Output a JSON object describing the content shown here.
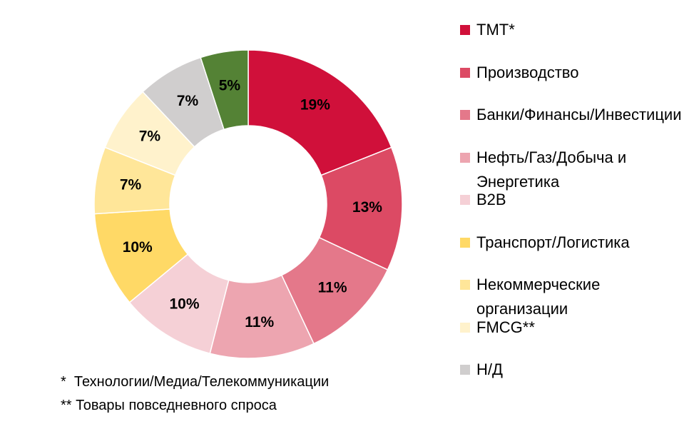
{
  "chart_data": {
    "type": "donut",
    "categories": [
      "ТМТ*",
      "Производство",
      "Банки/Финансы/Инвестиции",
      "Нефть/Газ/Добыча и Энергетика",
      "B2B",
      "Транспорт/Логистика",
      "Некоммерческие организации",
      "FMCG**",
      "Н/Д",
      null
    ],
    "values": [
      19,
      13,
      11,
      11,
      10,
      10,
      7,
      7,
      7,
      5
    ],
    "value_labels": [
      "19%",
      "13%",
      "11%",
      "11%",
      "10%",
      "10%",
      "7%",
      "7%",
      "7%",
      "5%"
    ],
    "colors": [
      "#d0103a",
      "#dc4a64",
      "#e4788a",
      "#eda5b0",
      "#f5d0d6",
      "#ffd966",
      "#ffe699",
      "#fff2cc",
      "#d0cece",
      "#548235"
    ],
    "footnotes": [
      "*  Технологии/Медиа/Телекоммуникации",
      "** Товары повседневного спроса"
    ],
    "legend": "right"
  }
}
